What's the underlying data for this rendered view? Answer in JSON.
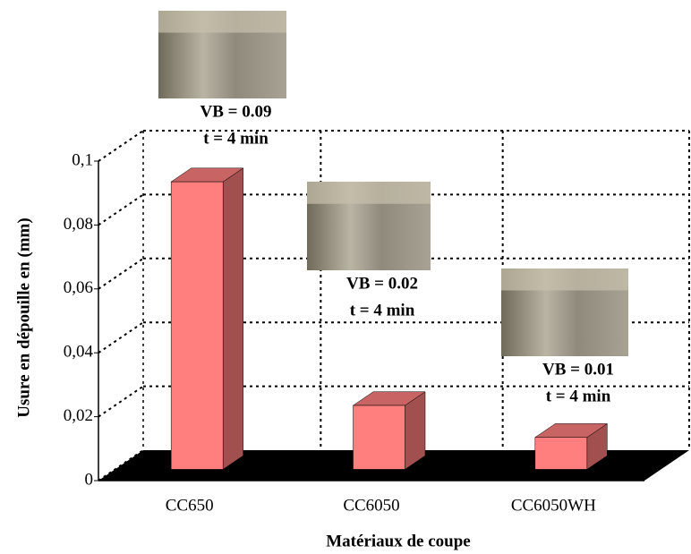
{
  "chart_data": {
    "type": "bar3d",
    "y_label": "Usure en dépouille en (mm)",
    "x_label": "Matériaux de coupe",
    "categories": [
      "CC650",
      "CC6050",
      "CC6050WH"
    ],
    "values": [
      0.09,
      0.02,
      0.01
    ],
    "color": "#ff7f7f",
    "ylim": [
      0,
      0.1
    ],
    "yticks": [
      0,
      {
        "value": 0.02,
        "label": "0,02"
      },
      {
        "value": 0.04,
        "label": "0,04"
      },
      {
        "value": 0.06,
        "label": "0,06"
      },
      {
        "value": 0.08,
        "label": "0,08"
      },
      {
        "value": 0.1,
        "label": "0,1"
      }
    ],
    "grid": true,
    "annotations": [
      [
        "VB = 0.09",
        "t = 4 min"
      ],
      [
        "VB = 0.02",
        "t = 4 min"
      ],
      [
        "VB = 0.01",
        "t = 4 min"
      ]
    ]
  }
}
